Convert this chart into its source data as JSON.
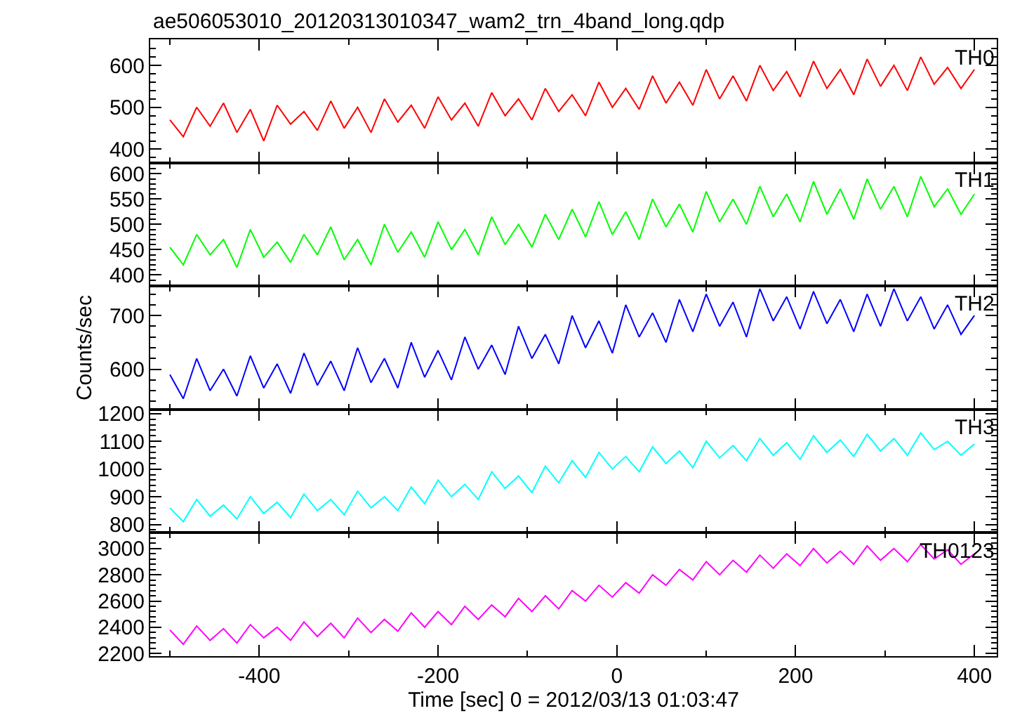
{
  "chart_data": [
    {
      "type": "line",
      "title": "ae506053010_20120313010347_wam2_trn_4band_long.qdp",
      "tick_labels": "y",
      "x": [
        -500,
        -485,
        -470,
        -455,
        -440,
        -425,
        -410,
        -395,
        -380,
        -365,
        -350,
        -335,
        -320,
        -305,
        -290,
        -275,
        -260,
        -245,
        -230,
        -215,
        -200,
        -185,
        -170,
        -155,
        -140,
        -125,
        -110,
        -95,
        -80,
        -65,
        -50,
        -35,
        -20,
        -5,
        10,
        25,
        40,
        55,
        70,
        85,
        100,
        115,
        130,
        145,
        160,
        175,
        190,
        205,
        220,
        235,
        250,
        265,
        280,
        295,
        310,
        325,
        340,
        355,
        370,
        385,
        400
      ],
      "xlim": [
        -522,
        425
      ],
      "xticks": [
        -400,
        -200,
        0,
        200,
        400
      ],
      "ylim": [
        368,
        662
      ],
      "yticks": [
        400,
        500,
        600
      ],
      "series": [
        {
          "name": "TH0",
          "color": "#ff0000",
          "values": [
            470,
            430,
            500,
            455,
            510,
            440,
            495,
            420,
            505,
            460,
            490,
            445,
            515,
            450,
            500,
            440,
            520,
            465,
            505,
            450,
            525,
            470,
            510,
            455,
            535,
            480,
            520,
            470,
            545,
            490,
            530,
            480,
            560,
            500,
            545,
            495,
            575,
            510,
            560,
            505,
            590,
            520,
            575,
            515,
            600,
            540,
            585,
            525,
            610,
            545,
            590,
            530,
            615,
            550,
            600,
            540,
            620,
            555,
            595,
            545,
            590
          ]
        }
      ]
    },
    {
      "type": "line",
      "tick_labels": "y",
      "x": [
        -500,
        -485,
        -470,
        -455,
        -440,
        -425,
        -410,
        -395,
        -380,
        -365,
        -350,
        -335,
        -320,
        -305,
        -290,
        -275,
        -260,
        -245,
        -230,
        -215,
        -200,
        -185,
        -170,
        -155,
        -140,
        -125,
        -110,
        -95,
        -80,
        -65,
        -50,
        -35,
        -20,
        -5,
        10,
        25,
        40,
        55,
        70,
        85,
        100,
        115,
        130,
        145,
        160,
        175,
        190,
        205,
        220,
        235,
        250,
        265,
        280,
        295,
        310,
        325,
        340,
        355,
        370,
        385,
        400
      ],
      "xlim": [
        -522,
        425
      ],
      "xticks": [
        -400,
        -200,
        0,
        200,
        400
      ],
      "ylim": [
        378,
        622
      ],
      "yticks": [
        400,
        450,
        500,
        550,
        600
      ],
      "series": [
        {
          "name": "TH1",
          "color": "#00ff00",
          "values": [
            455,
            420,
            480,
            440,
            470,
            415,
            490,
            435,
            465,
            425,
            480,
            440,
            495,
            430,
            470,
            420,
            500,
            445,
            485,
            435,
            505,
            450,
            490,
            440,
            515,
            460,
            500,
            455,
            520,
            470,
            530,
            475,
            545,
            480,
            525,
            470,
            550,
            495,
            540,
            485,
            565,
            505,
            550,
            500,
            575,
            515,
            560,
            505,
            585,
            520,
            570,
            510,
            590,
            530,
            575,
            515,
            595,
            535,
            570,
            520,
            560
          ]
        }
      ]
    },
    {
      "type": "line",
      "tick_labels": "y",
      "ylabel": "Counts/sec",
      "x": [
        -500,
        -485,
        -470,
        -455,
        -440,
        -425,
        -410,
        -395,
        -380,
        -365,
        -350,
        -335,
        -320,
        -305,
        -290,
        -275,
        -260,
        -245,
        -230,
        -215,
        -200,
        -185,
        -170,
        -155,
        -140,
        -125,
        -110,
        -95,
        -80,
        -65,
        -50,
        -35,
        -20,
        -5,
        10,
        25,
        40,
        55,
        70,
        85,
        100,
        115,
        130,
        145,
        160,
        175,
        190,
        205,
        220,
        235,
        250,
        265,
        280,
        295,
        310,
        325,
        340,
        355,
        370,
        385,
        400
      ],
      "xlim": [
        -522,
        425
      ],
      "xticks": [
        -400,
        -200,
        0,
        200,
        400
      ],
      "ylim": [
        525,
        755
      ],
      "yticks": [
        600,
        700
      ],
      "series": [
        {
          "name": "TH2",
          "color": "#0000ff",
          "values": [
            590,
            545,
            620,
            560,
            600,
            550,
            625,
            565,
            610,
            555,
            630,
            570,
            615,
            560,
            640,
            575,
            620,
            565,
            650,
            585,
            635,
            580,
            660,
            600,
            645,
            590,
            680,
            620,
            665,
            610,
            700,
            640,
            690,
            630,
            720,
            660,
            705,
            650,
            730,
            670,
            740,
            680,
            725,
            660,
            750,
            690,
            735,
            675,
            745,
            685,
            730,
            670,
            740,
            680,
            750,
            690,
            735,
            675,
            720,
            665,
            700
          ]
        }
      ]
    },
    {
      "type": "line",
      "tick_labels": "y",
      "x": [
        -500,
        -485,
        -470,
        -455,
        -440,
        -425,
        -410,
        -395,
        -380,
        -365,
        -350,
        -335,
        -320,
        -305,
        -290,
        -275,
        -260,
        -245,
        -230,
        -215,
        -200,
        -185,
        -170,
        -155,
        -140,
        -125,
        -110,
        -95,
        -80,
        -65,
        -50,
        -35,
        -20,
        -5,
        10,
        25,
        40,
        55,
        70,
        85,
        100,
        115,
        130,
        145,
        160,
        175,
        190,
        205,
        220,
        235,
        250,
        265,
        280,
        295,
        310,
        325,
        340,
        355,
        370,
        385,
        400
      ],
      "xlim": [
        -522,
        425
      ],
      "xticks": [
        -400,
        -200,
        0,
        200,
        400
      ],
      "ylim": [
        770,
        1215
      ],
      "yticks": [
        800,
        900,
        1000,
        1100,
        1200
      ],
      "series": [
        {
          "name": "TH3",
          "color": "#00ffff",
          "values": [
            860,
            810,
            890,
            830,
            870,
            820,
            900,
            840,
            880,
            825,
            910,
            850,
            890,
            835,
            920,
            860,
            900,
            850,
            935,
            875,
            960,
            900,
            945,
            890,
            990,
            930,
            975,
            915,
            1010,
            950,
            1030,
            970,
            1060,
            1000,
            1045,
            990,
            1080,
            1020,
            1065,
            1005,
            1100,
            1040,
            1085,
            1030,
            1110,
            1050,
            1095,
            1035,
            1120,
            1060,
            1105,
            1045,
            1125,
            1065,
            1110,
            1050,
            1130,
            1070,
            1100,
            1050,
            1090
          ]
        }
      ]
    },
    {
      "type": "line",
      "xlabel": "Time [sec] 0 = 2012/03/13 01:03:47",
      "x": [
        -500,
        -485,
        -470,
        -455,
        -440,
        -425,
        -410,
        -395,
        -380,
        -365,
        -350,
        -335,
        -320,
        -305,
        -290,
        -275,
        -260,
        -245,
        -230,
        -215,
        -200,
        -185,
        -170,
        -155,
        -140,
        -125,
        -110,
        -95,
        -80,
        -65,
        -50,
        -35,
        -20,
        -5,
        10,
        25,
        40,
        55,
        70,
        85,
        100,
        115,
        130,
        145,
        160,
        175,
        190,
        205,
        220,
        235,
        250,
        265,
        280,
        295,
        310,
        325,
        340,
        355,
        370,
        385,
        400
      ],
      "xlim": [
        -522,
        425
      ],
      "xticks": [
        -400,
        -200,
        0,
        200,
        400
      ],
      "ylim": [
        2180,
        3120
      ],
      "yticks": [
        2200,
        2400,
        2600,
        2800,
        3000
      ],
      "series": [
        {
          "name": "TH0123",
          "color": "#ff00ff",
          "values": [
            2380,
            2270,
            2410,
            2300,
            2390,
            2280,
            2420,
            2320,
            2400,
            2300,
            2440,
            2330,
            2430,
            2320,
            2470,
            2360,
            2460,
            2370,
            2510,
            2400,
            2520,
            2420,
            2560,
            2460,
            2570,
            2480,
            2620,
            2520,
            2640,
            2540,
            2680,
            2600,
            2720,
            2630,
            2740,
            2660,
            2800,
            2720,
            2840,
            2760,
            2900,
            2800,
            2910,
            2820,
            2950,
            2850,
            2960,
            2870,
            3000,
            2890,
            2980,
            2880,
            3020,
            2910,
            3000,
            2900,
            3030,
            2920,
            2990,
            2880,
            2960
          ]
        }
      ]
    }
  ]
}
